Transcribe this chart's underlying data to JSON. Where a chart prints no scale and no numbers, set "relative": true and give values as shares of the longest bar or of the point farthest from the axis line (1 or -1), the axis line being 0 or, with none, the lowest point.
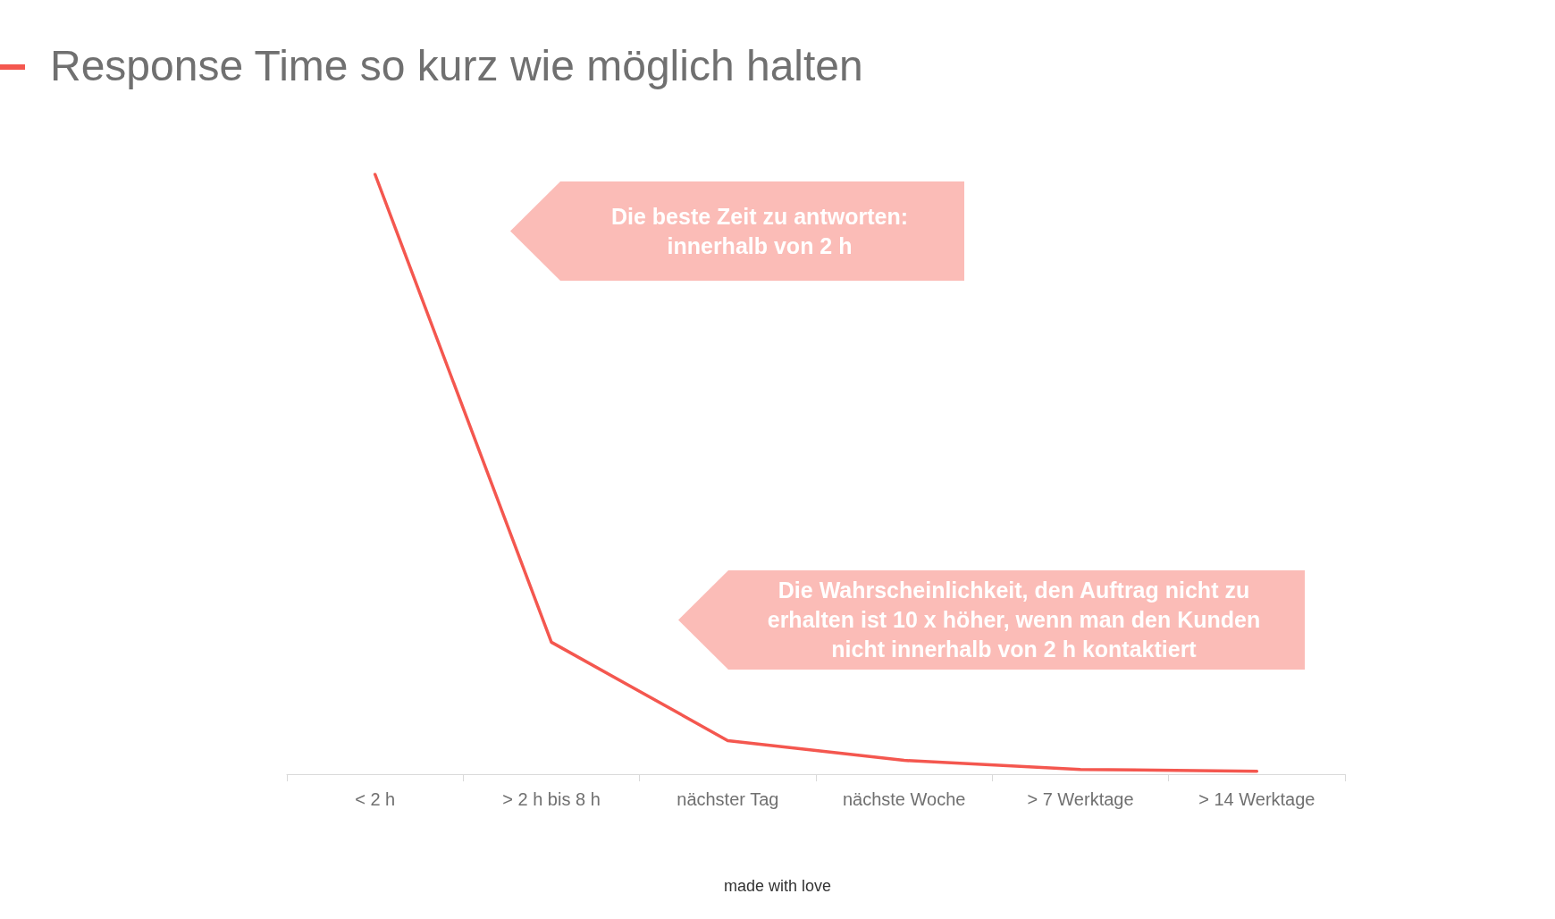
{
  "chart_data": {
    "type": "line",
    "title": "Response Time so kurz wie möglich halten",
    "categories": [
      "< 2 h",
      "> 2 h bis 8 h",
      "nächster Tag",
      "nächste Woche",
      "> 7 Werktage",
      "> 14 Werktage"
    ],
    "series": [
      {
        "color": "#f4574f",
        "values": [
          1,
          0.22,
          0.056,
          0.023,
          0.008,
          0.005
        ]
      }
    ],
    "relative": true,
    "marker": "none",
    "line_style": "solid",
    "grid": false,
    "annotations": [
      "Die beste Zeit zu antworten: innerhalb von 2 h",
      "Die Wahrscheinlichkeit, den Auftrag nicht zu erhalten ist 10 x höher, wenn man den Kunden nicht innerhalb von 2 h kontaktiert",
      "made with love"
    ]
  }
}
